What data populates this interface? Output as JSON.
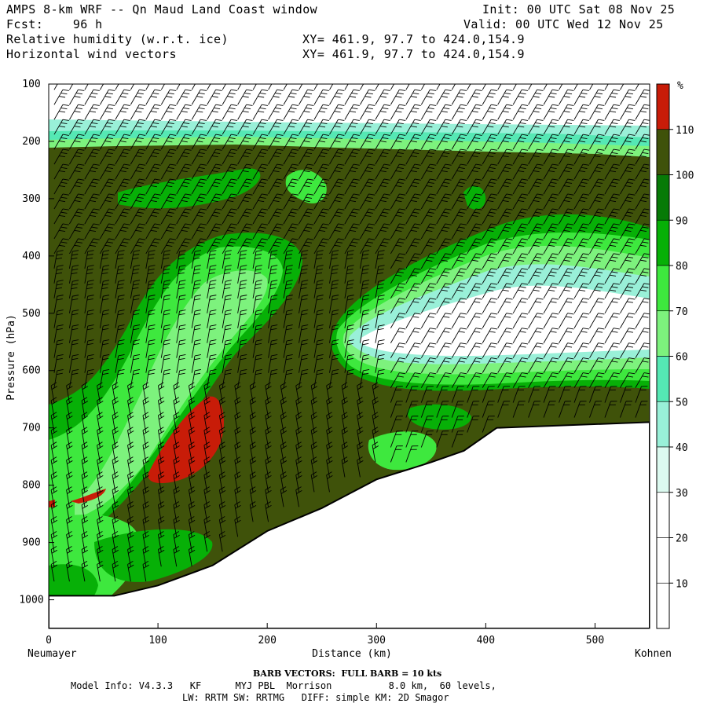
{
  "header": {
    "title": "AMPS 8-km WRF -- Qn Maud Land Coast window",
    "forecast": "Fcst:    96 h",
    "init": "Init: 00 UTC Sat 08 Nov 25",
    "valid": "Valid: 00 UTC Wed 12 Nov 25",
    "field1": "Relative humidity (w.r.t. ice)",
    "field2": "Horizontal wind vectors",
    "xy1": "XY= 461.9, 97.7 to 424.0,154.9",
    "xy2": "XY= 461.9, 97.7 to 424.0,154.9"
  },
  "footer": {
    "barb_note": "BARB VECTORS:  FULL BARB = 10 kts",
    "model_info": "Model Info: V4.3.3   KF      MYJ PBL  Morrison          8.0 km,  60 levels,",
    "physics": "LW: RRTM SW: RRTMG   DIFF: simple KM: 2D Smagor"
  },
  "chart_data": {
    "type": "heatmap",
    "xlabel": "Distance (km)",
    "ylabel": "Pressure (hPa)",
    "x_left_label": "Neumayer",
    "x_right_label": "Kohnen",
    "xlim": [
      0,
      550
    ],
    "ylim": [
      1050,
      100
    ],
    "x_ticks": [
      0,
      100,
      200,
      300,
      400,
      500
    ],
    "y_ticks": [
      100,
      200,
      300,
      400,
      500,
      600,
      700,
      800,
      900,
      1000
    ],
    "colorbar": {
      "unit": "%",
      "levels": [
        10,
        20,
        30,
        40,
        50,
        60,
        70,
        80,
        90,
        100,
        110
      ],
      "colors": [
        "#ffffff",
        "#ffffff",
        "#ffffff",
        "#dcfaf0",
        "#99f0d8",
        "#55e8b4",
        "#7df27d",
        "#3ee83e",
        "#07b007",
        "#077a07",
        "#3f520a",
        "#c81c08"
      ]
    },
    "terrain": [
      [
        0,
        993
      ],
      [
        60,
        993
      ],
      [
        100,
        975
      ],
      [
        150,
        940
      ],
      [
        200,
        880
      ],
      [
        250,
        840
      ],
      [
        300,
        790
      ],
      [
        350,
        760
      ],
      [
        380,
        740
      ],
      [
        410,
        700
      ],
      [
        550,
        690
      ]
    ],
    "regions": [
      {
        "rh": "100-110",
        "description": "background"
      },
      {
        "rh": "<30",
        "location": "120-200 hPa band and 320-550 km, 420-580 hPa"
      },
      {
        "rh": ">110",
        "location": "100-160 km, 650-800 hPa"
      }
    ]
  }
}
